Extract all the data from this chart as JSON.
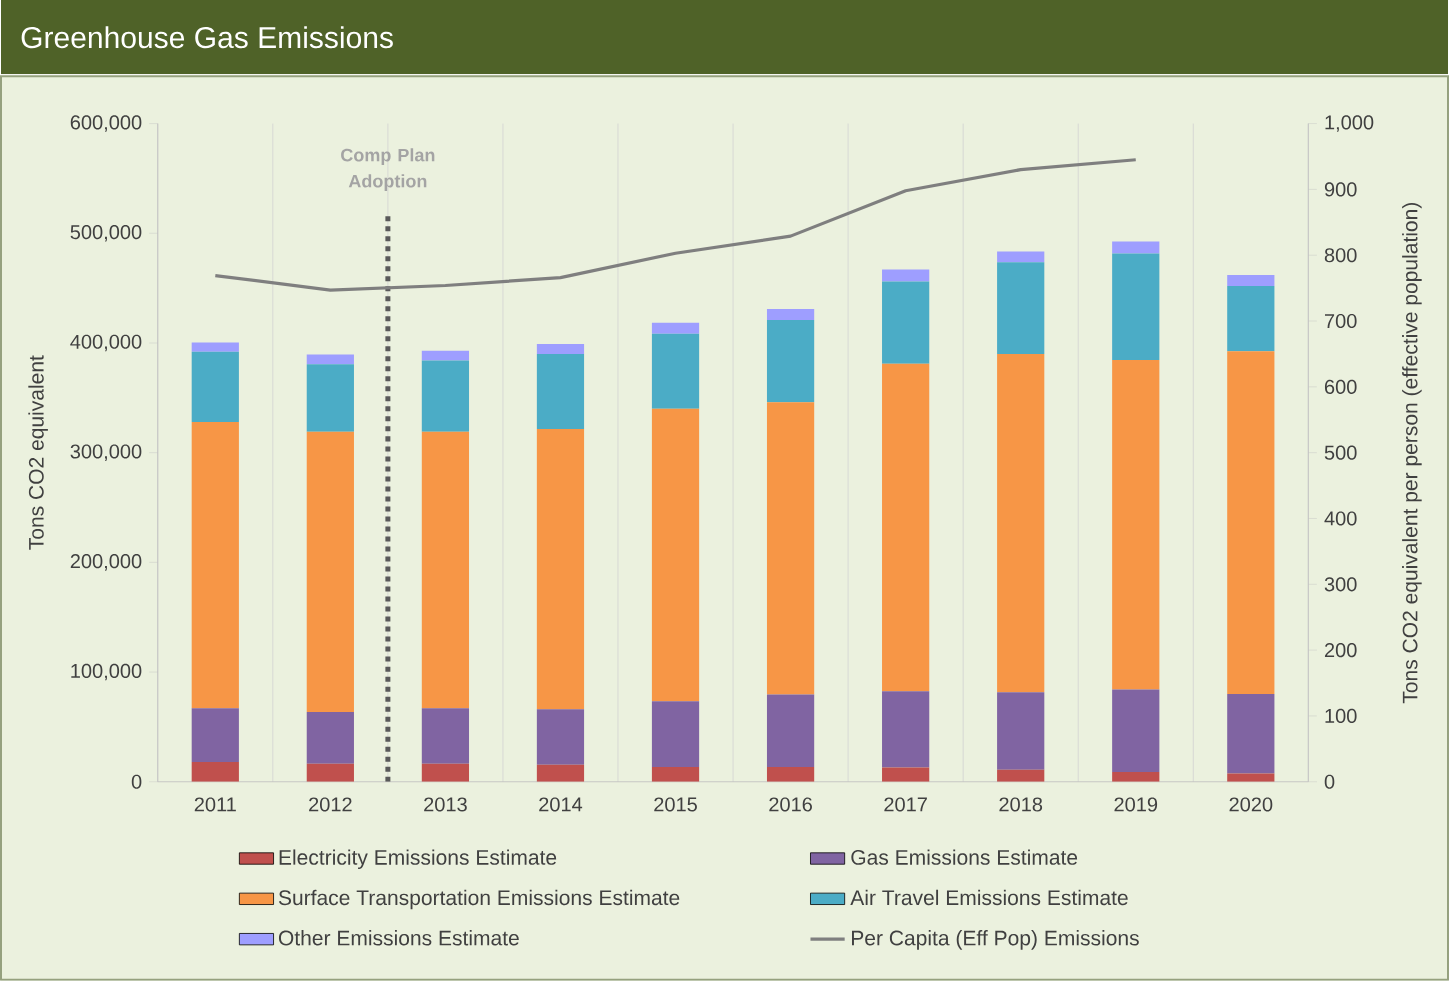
{
  "chart_data": {
    "type": "bar",
    "stacked": true,
    "title": "Greenhouse Gas Emissions",
    "ylabel": "Tons CO2 equivalent",
    "y2label": "Tons CO2 equivalent per person (effective population)",
    "x": [
      2011,
      2012,
      2013,
      2014,
      2015,
      2016,
      2017,
      2018,
      2019,
      2020
    ],
    "series": [
      {
        "name": "Electricity Emissions Estimate",
        "color": "#c0504d",
        "values": [
          18000,
          16500,
          16500,
          15500,
          13500,
          13500,
          13000,
          11000,
          9000,
          7500
        ]
      },
      {
        "name": "Gas Emissions Estimate",
        "color": "#8064a2",
        "values": [
          49000,
          47000,
          50500,
          50500,
          60000,
          66000,
          69500,
          70500,
          75000,
          72500
        ]
      },
      {
        "name": "Surface Transportation Emissions Estimate",
        "color": "#f79646",
        "values": [
          261000,
          255500,
          252000,
          255500,
          266500,
          266500,
          298500,
          308500,
          300500,
          312500
        ]
      },
      {
        "name": "Air Travel Emissions Estimate",
        "color": "#4bacc6",
        "values": [
          64000,
          61500,
          65000,
          68500,
          68500,
          75000,
          75000,
          83500,
          97000,
          59500
        ]
      },
      {
        "name": "Other Emissions Estimate",
        "color": "#9e9eff",
        "values": [
          8500,
          9000,
          9000,
          9000,
          10000,
          10000,
          11000,
          10000,
          11000,
          10000
        ]
      },
      {
        "name": "Per Capita (Eff Pop) Emissions",
        "type": "line",
        "axis": "y2",
        "color": "#7f7f7f",
        "values": [
          769,
          747,
          754,
          766,
          803,
          829,
          898,
          930,
          945,
          null
        ]
      }
    ],
    "xlim": [
      2010.5,
      2020.5
    ],
    "xticks": [
      2011,
      2012,
      2013,
      2014,
      2015,
      2016,
      2017,
      2018,
      2019,
      2020,
      {
        "value": 2010.5,
        "label": null
      },
      {
        "value": 2011.5,
        "label": null
      },
      {
        "value": 2012.5,
        "label": null
      },
      {
        "value": 2013.5,
        "label": null
      },
      {
        "value": 2014.5,
        "label": null
      },
      {
        "value": 2015.5,
        "label": null
      },
      {
        "value": 2016.5,
        "label": null
      },
      {
        "value": 2017.5,
        "label": null
      },
      {
        "value": 2018.5,
        "label": null
      },
      {
        "value": 2019.5,
        "label": null
      },
      {
        "value": 2020.5,
        "label": null
      }
    ],
    "ylim": [
      0,
      600000
    ],
    "yticks": [
      0,
      {
        "value": 100000,
        "label": "100,000"
      },
      {
        "value": 200000,
        "label": "200,000"
      },
      {
        "value": 300000,
        "label": "300,000"
      },
      {
        "value": 400000,
        "label": "400,000"
      },
      {
        "value": 500000,
        "label": "500,000"
      },
      {
        "value": 600000,
        "label": "600,000"
      }
    ],
    "y2lim": [
      0,
      1000
    ],
    "y2ticks": [
      0,
      100,
      200,
      300,
      400,
      500,
      600,
      700,
      800,
      900,
      {
        "value": 1000,
        "label": "1,000"
      }
    ],
    "ref_lines": [
      {
        "axis": "x",
        "value": 2012.5,
        "label": "Comp Plan Adoption",
        "color": "#595959",
        "line_style": "dotted"
      }
    ],
    "grid": "x",
    "legend": "bottom"
  }
}
